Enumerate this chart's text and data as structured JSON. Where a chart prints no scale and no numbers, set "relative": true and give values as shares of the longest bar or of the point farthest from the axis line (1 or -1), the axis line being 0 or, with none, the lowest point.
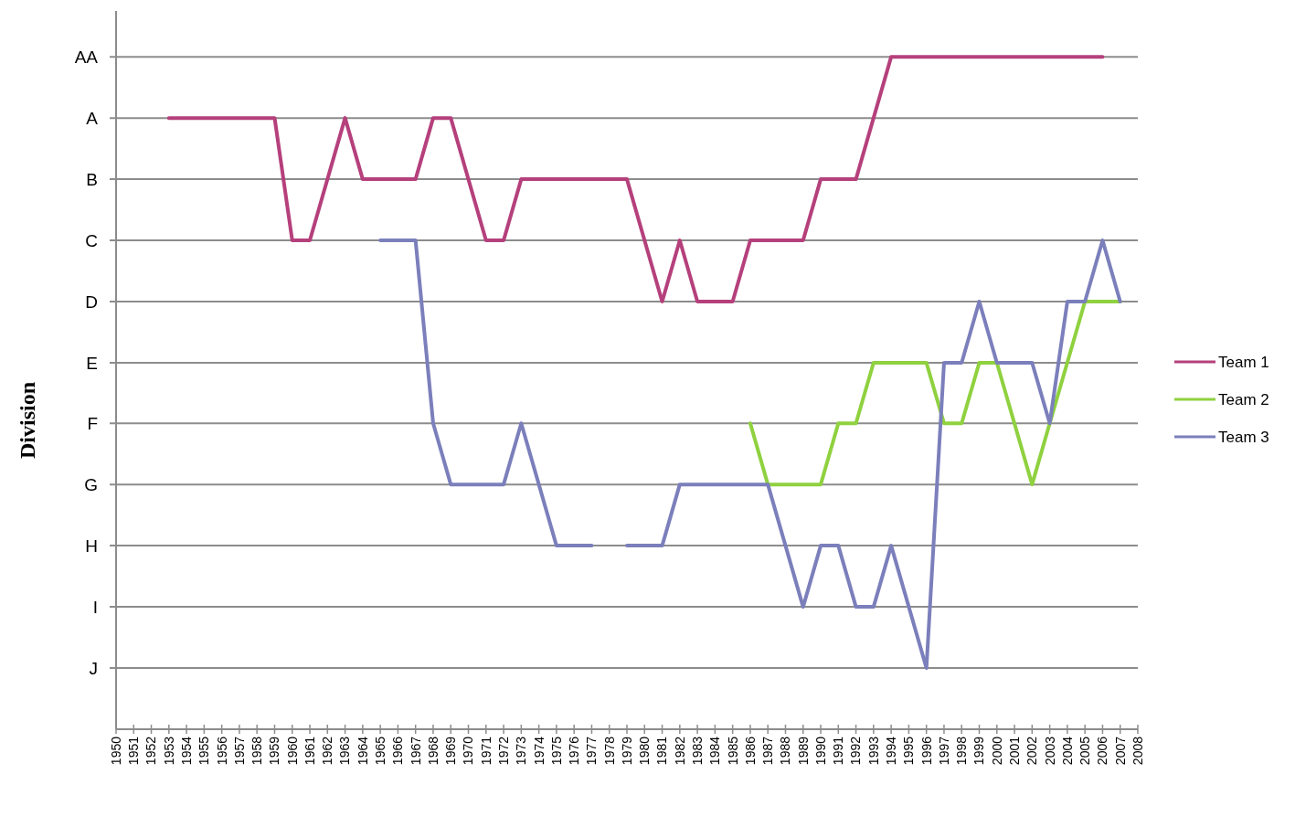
{
  "chart_data": {
    "type": "line",
    "ylabel": "Division",
    "relative": true,
    "xlim": [
      1950,
      2008
    ],
    "xticks": [
      1950,
      1951,
      1952,
      1953,
      1954,
      1955,
      1956,
      1957,
      1958,
      1959,
      1960,
      1961,
      1962,
      1963,
      1964,
      1965,
      1966,
      1967,
      1968,
      1969,
      1970,
      1971,
      1972,
      1973,
      1974,
      1975,
      1976,
      1977,
      1978,
      1979,
      1980,
      1981,
      1982,
      1983,
      1984,
      1985,
      1986,
      1987,
      1988,
      1989,
      1990,
      1991,
      1992,
      1993,
      1994,
      1995,
      1996,
      1997,
      1998,
      1999,
      2000,
      2001,
      2002,
      2003,
      2004,
      2005,
      2006,
      2007,
      2008
    ],
    "ref_lines": [
      {
        "axis": "y",
        "value": 1,
        "label": "AA",
        "color": "#8c8c8c"
      },
      {
        "axis": "y",
        "value": 0.909,
        "label": "A",
        "color": "#8c8c8c"
      },
      {
        "axis": "y",
        "value": 0.818,
        "label": "B",
        "color": "#8c8c8c"
      },
      {
        "axis": "y",
        "value": 0.727,
        "label": "C",
        "color": "#8c8c8c"
      },
      {
        "axis": "y",
        "value": 0.636,
        "label": "D",
        "color": "#8c8c8c"
      },
      {
        "axis": "y",
        "value": 0.545,
        "label": "E",
        "color": "#8c8c8c"
      },
      {
        "axis": "y",
        "value": 0.455,
        "label": "F",
        "color": "#8c8c8c"
      },
      {
        "axis": "y",
        "value": 0.364,
        "label": "G",
        "color": "#8c8c8c"
      },
      {
        "axis": "y",
        "value": 0.273,
        "label": "H",
        "color": "#8c8c8c"
      },
      {
        "axis": "y",
        "value": 0.182,
        "label": "I",
        "color": "#8c8c8c"
      },
      {
        "axis": "y",
        "value": 0.091,
        "label": "J",
        "color": "#8c8c8c"
      }
    ],
    "legend": "right",
    "line_style": "solid",
    "series": [
      {
        "name": "Team 1",
        "color": "#b5407c",
        "x": [
          1953,
          1959,
          1960,
          1961,
          1963,
          1964,
          1967,
          1968,
          1969,
          1971,
          1972,
          1973,
          1979,
          1981,
          1982,
          1983,
          1985,
          1986,
          1989,
          1990,
          1992,
          1994,
          2006
        ],
        "values": [
          0.909,
          0.909,
          0.727,
          0.727,
          0.909,
          0.818,
          0.818,
          0.909,
          0.909,
          0.727,
          0.727,
          0.818,
          0.818,
          0.636,
          0.727,
          0.636,
          0.636,
          0.727,
          0.727,
          0.818,
          0.818,
          1,
          1
        ]
      },
      {
        "name": "Team 2",
        "color": "#8fd13f",
        "x": [
          1986,
          1987,
          1990,
          1991,
          1992,
          1993,
          1996,
          1997,
          1998,
          1999,
          2000,
          2002,
          2003,
          2005,
          2007
        ],
        "values": [
          0.455,
          0.364,
          0.364,
          0.455,
          0.455,
          0.545,
          0.545,
          0.455,
          0.455,
          0.545,
          0.545,
          0.364,
          0.455,
          0.636,
          0.636
        ]
      },
      {
        "name": "Team 3",
        "color": "#7b7fbb",
        "x": [
          1965,
          1967,
          1968,
          1969,
          1972,
          1973,
          1975,
          1977,
          1978,
          1979,
          1981,
          1982,
          1987,
          1989,
          1990,
          1991,
          1992,
          1993,
          1994,
          1996,
          1997,
          1998,
          1999,
          2000,
          2002,
          2003,
          2004,
          2005,
          2006,
          2007
        ],
        "values": [
          0.727,
          0.727,
          0.455,
          0.364,
          0.364,
          0.455,
          0.273,
          0.273,
          null,
          0.273,
          0.273,
          0.364,
          0.364,
          0.182,
          0.273,
          0.273,
          0.182,
          0.182,
          0.273,
          0.091,
          0.545,
          0.545,
          0.636,
          0.545,
          0.545,
          0.455,
          0.636,
          0.636,
          0.727,
          0.636
        ]
      }
    ]
  }
}
